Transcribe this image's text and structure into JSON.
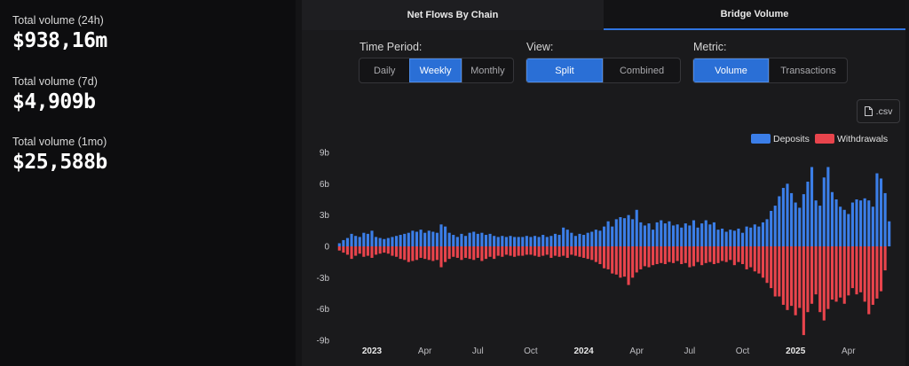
{
  "stats": [
    {
      "label": "Total volume (24h)",
      "value": "$938,16m"
    },
    {
      "label": "Total volume (7d)",
      "value": "$4,909b"
    },
    {
      "label": "Total volume (1mo)",
      "value": "$25,588b"
    }
  ],
  "tabs": [
    {
      "label": "Net Flows By Chain",
      "active": false
    },
    {
      "label": "Bridge Volume",
      "active": true
    }
  ],
  "controls": {
    "time_period": {
      "label": "Time Period:",
      "options": [
        "Daily",
        "Weekly",
        "Monthly"
      ],
      "selected": "Weekly"
    },
    "view": {
      "label": "View:",
      "options": [
        "Split",
        "Combined"
      ],
      "selected": "Split"
    },
    "metric": {
      "label": "Metric:",
      "options": [
        "Volume",
        "Transactions"
      ],
      "selected": "Volume"
    }
  },
  "csv_label": ".csv",
  "icons": {
    "csv": "file-icon"
  },
  "colors": {
    "deposits": "#3b7ee8",
    "withdrawals": "#e8444c",
    "accent": "#2a6fd6"
  },
  "chart_data": {
    "type": "bar",
    "title": "",
    "xlabel": "",
    "ylabel": "",
    "ylim": [
      -9,
      9
    ],
    "y_ticks": [
      9,
      6,
      3,
      0,
      -3,
      -6,
      -9
    ],
    "y_tick_labels": [
      "9b",
      "6b",
      "3b",
      "0",
      "-3b",
      "-6b",
      "-9b"
    ],
    "x_ticks": [
      {
        "label": "2023",
        "index": 8,
        "bold": true
      },
      {
        "label": "Apr",
        "index": 21,
        "bold": false
      },
      {
        "label": "Jul",
        "index": 34,
        "bold": false
      },
      {
        "label": "Oct",
        "index": 47,
        "bold": false
      },
      {
        "label": "2024",
        "index": 60,
        "bold": true
      },
      {
        "label": "Apr",
        "index": 73,
        "bold": false
      },
      {
        "label": "Jul",
        "index": 86,
        "bold": false
      },
      {
        "label": "Oct",
        "index": 99,
        "bold": false
      },
      {
        "label": "2025",
        "index": 112,
        "bold": true
      },
      {
        "label": "Apr",
        "index": 125,
        "bold": false
      }
    ],
    "legend": {
      "position": "top-right"
    },
    "series": [
      {
        "name": "Deposits",
        "values": [
          0.3,
          0.6,
          0.8,
          1.2,
          1.0,
          0.9,
          1.3,
          1.2,
          1.5,
          0.9,
          0.8,
          0.7,
          0.8,
          0.9,
          1.0,
          1.1,
          1.2,
          1.3,
          1.5,
          1.4,
          1.6,
          1.3,
          1.5,
          1.4,
          1.3,
          2.1,
          1.9,
          1.3,
          1.1,
          0.9,
          1.2,
          1.0,
          1.3,
          1.4,
          1.2,
          1.3,
          1.1,
          1.2,
          1.0,
          0.9,
          1.0,
          0.9,
          1.0,
          0.9,
          0.9,
          0.9,
          1.0,
          0.9,
          1.0,
          0.9,
          1.1,
          0.9,
          1.0,
          1.2,
          1.1,
          1.8,
          1.6,
          1.3,
          1.0,
          1.2,
          1.1,
          1.3,
          1.4,
          1.6,
          1.5,
          1.9,
          2.4,
          1.9,
          2.6,
          2.8,
          2.7,
          3.0,
          2.6,
          3.5,
          2.3,
          2.0,
          2.2,
          1.6,
          2.3,
          2.5,
          2.2,
          2.4,
          2.0,
          2.1,
          1.8,
          2.2,
          2.0,
          2.5,
          1.8,
          2.2,
          2.5,
          2.1,
          2.3,
          1.6,
          1.7,
          1.4,
          1.6,
          1.5,
          1.7,
          1.3,
          1.9,
          1.8,
          2.1,
          1.9,
          2.3,
          2.6,
          3.4,
          3.9,
          4.8,
          5.6,
          6.0,
          5.1,
          4.2,
          3.7,
          5.0,
          6.2,
          7.6,
          4.4,
          3.9,
          6.6,
          7.6,
          5.2,
          4.5,
          3.8,
          3.5,
          3.1,
          4.2,
          4.5,
          4.4,
          4.6,
          4.4,
          3.8,
          7.0,
          6.5,
          5.1,
          2.4
        ]
      },
      {
        "name": "Withdrawals",
        "values": [
          -0.4,
          -0.6,
          -0.8,
          -1.2,
          -0.9,
          -0.7,
          -1.0,
          -0.9,
          -1.1,
          -0.8,
          -0.7,
          -0.6,
          -0.7,
          -0.9,
          -1.0,
          -1.2,
          -1.3,
          -1.5,
          -1.4,
          -1.3,
          -1.1,
          -1.2,
          -1.3,
          -1.4,
          -1.3,
          -2.0,
          -1.5,
          -1.2,
          -1.0,
          -1.1,
          -1.3,
          -1.1,
          -1.2,
          -1.3,
          -1.1,
          -1.4,
          -1.2,
          -1.0,
          -1.2,
          -0.9,
          -1.0,
          -0.8,
          -0.9,
          -1.0,
          -0.9,
          -0.9,
          -0.8,
          -0.8,
          -0.9,
          -1.0,
          -0.9,
          -0.8,
          -1.1,
          -0.9,
          -1.0,
          -0.9,
          -1.1,
          -0.8,
          -0.9,
          -1.0,
          -1.1,
          -1.2,
          -1.3,
          -1.5,
          -1.7,
          -2.1,
          -2.2,
          -2.6,
          -2.7,
          -3.0,
          -2.9,
          -3.7,
          -3.0,
          -2.5,
          -2.2,
          -1.9,
          -2.0,
          -1.8,
          -1.7,
          -1.6,
          -1.7,
          -1.5,
          -1.6,
          -1.4,
          -1.7,
          -1.6,
          -2.0,
          -1.9,
          -1.5,
          -1.8,
          -1.6,
          -1.5,
          -1.7,
          -1.6,
          -1.4,
          -1.5,
          -1.3,
          -1.8,
          -1.5,
          -1.7,
          -2.2,
          -2.0,
          -2.4,
          -2.6,
          -3.0,
          -3.5,
          -4.0,
          -4.8,
          -4.8,
          -5.6,
          -6.1,
          -5.7,
          -6.6,
          -5.9,
          -8.5,
          -6.3,
          -5.5,
          -4.6,
          -6.3,
          -7.1,
          -6.0,
          -5.1,
          -5.3,
          -4.9,
          -5.5,
          -4.7,
          -4.0,
          -4.6,
          -4.4,
          -5.3,
          -6.5,
          -5.6,
          -5.0,
          -4.3,
          -2.3
        ]
      }
    ]
  }
}
